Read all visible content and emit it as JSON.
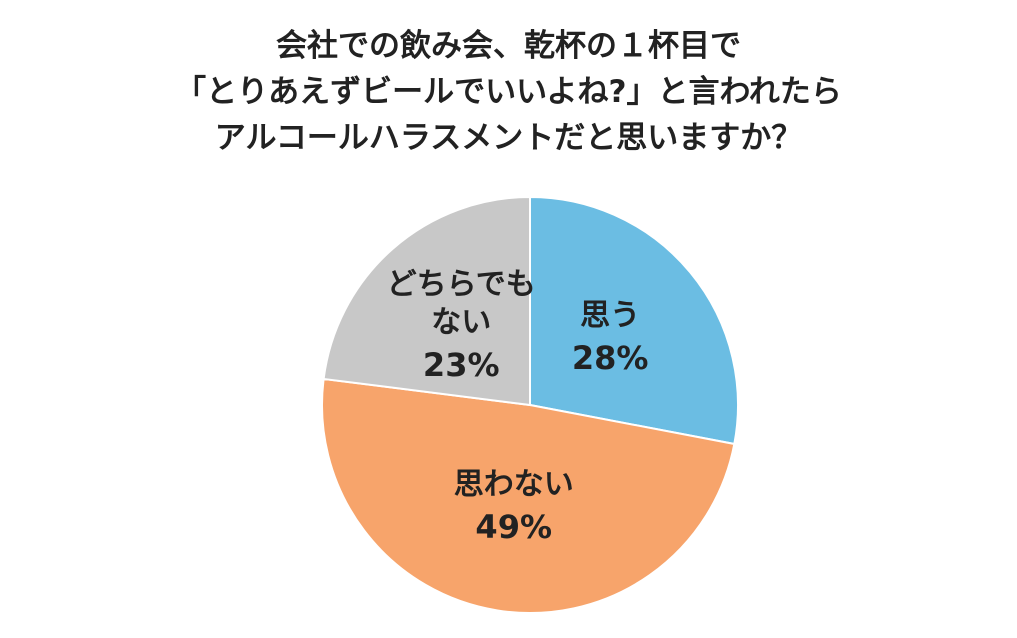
{
  "chart_data": {
    "type": "pie",
    "title": [
      "会社での飲み会、乾杯の１杯目で",
      "「とりあえずビールでいいよね?」と言われたら",
      "アルコールハラスメントだと思いますか？"
    ],
    "categories": [
      "思う",
      "思わない",
      "どちらでもない"
    ],
    "values": [
      28,
      49,
      23
    ],
    "value_labels": [
      "28%",
      "49%",
      "23%"
    ],
    "colors": [
      "#6bbde3",
      "#f7a46b",
      "#c8c8c8"
    ]
  }
}
